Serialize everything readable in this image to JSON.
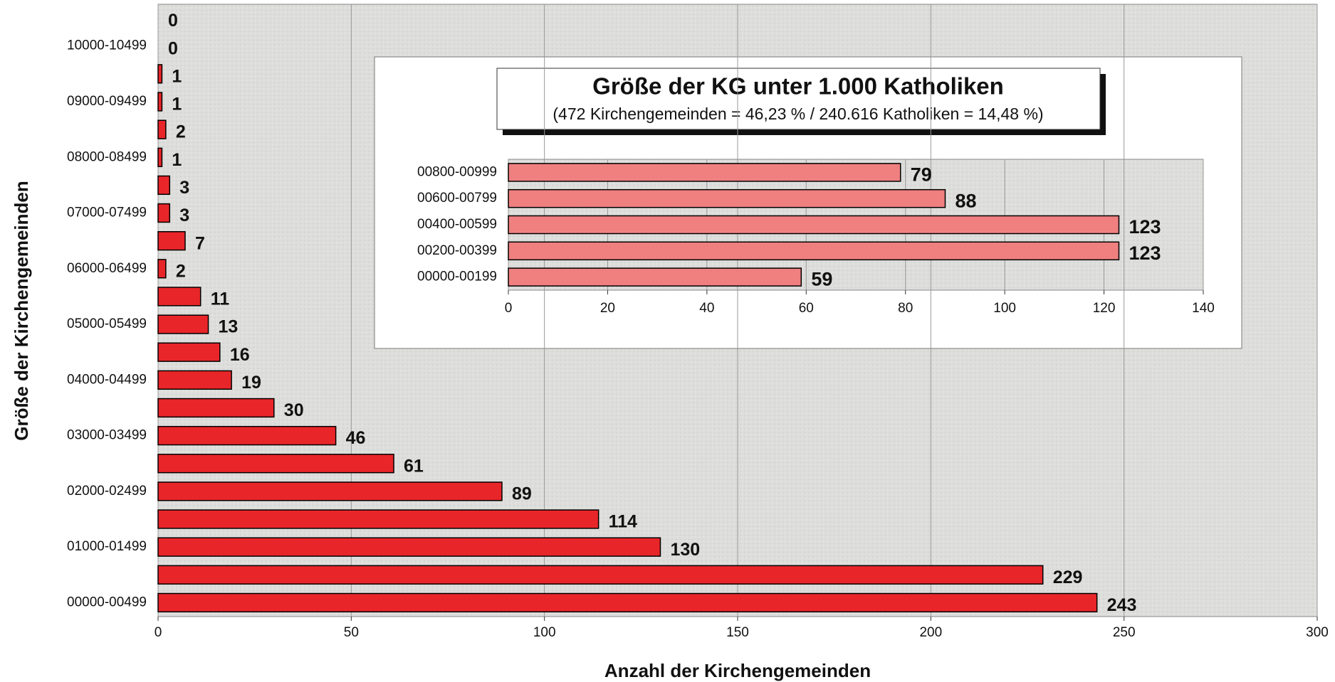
{
  "chart_data": [
    {
      "type": "hbar",
      "x_label": "Anzahl der Kirchengemeinden",
      "y_label": "Größe der Kirchengemeinden",
      "categories": [
        "00000-00499",
        null,
        "01000-01499",
        null,
        "02000-02499",
        null,
        "03000-03499",
        null,
        "04000-04499",
        null,
        "05000-05499",
        null,
        "06000-06499",
        null,
        "07000-07499",
        null,
        "08000-08499",
        null,
        "09000-09499",
        null,
        "10000-10499",
        null
      ],
      "values": [
        243,
        229,
        130,
        114,
        89,
        61,
        46,
        30,
        19,
        16,
        13,
        11,
        2,
        7,
        3,
        3,
        1,
        2,
        1,
        1,
        0,
        0
      ],
      "color": "#e8262a",
      "xlim": [
        0,
        300
      ],
      "xticks": [
        0,
        50,
        100,
        150,
        200,
        250,
        300
      ],
      "grid": true
    },
    {
      "type": "hbar",
      "title": "Größe der KG unter 1.000 Katholiken",
      "subtitle": "(472 Kirchengemeinden = 46,23 %   /   240.616 Katholiken = 14,48 %)",
      "categories": [
        "00000-00199",
        "00200-00399",
        "00400-00599",
        "00600-00799",
        "00800-00999"
      ],
      "values": [
        59,
        123,
        123,
        88,
        79
      ],
      "color": "#f08080",
      "xlim": [
        0,
        140
      ],
      "xticks": [
        0,
        20,
        40,
        60,
        80,
        100,
        120,
        140
      ],
      "grid": true
    }
  ]
}
